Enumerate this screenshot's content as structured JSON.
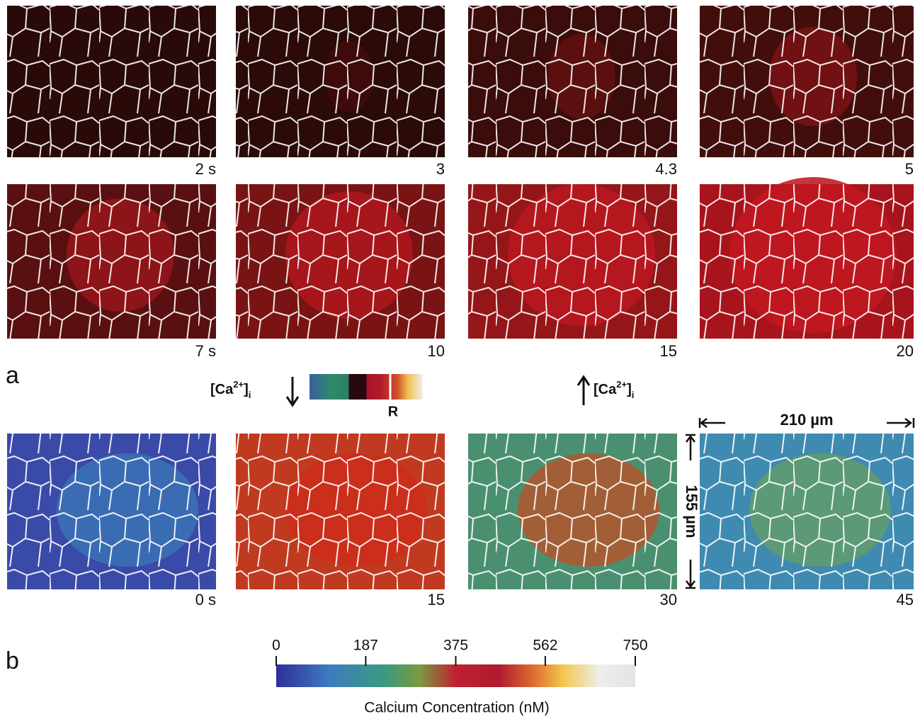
{
  "figure": {
    "panel_a": {
      "label": "a",
      "frames": [
        "2 s",
        "3",
        "4.3",
        "5",
        "7 s",
        "10",
        "15",
        "20"
      ],
      "ion": {
        "base": "[Ca",
        "charge": "2+",
        "bracket": "]",
        "subscript": "i"
      },
      "reference": "R"
    },
    "panel_b": {
      "label": "b",
      "frames": [
        "0 s",
        "15",
        "30",
        "45"
      ],
      "scale_width": "210 µm",
      "scale_height": "155 µm",
      "colorbar": {
        "ticks": [
          0,
          187,
          375,
          562,
          750
        ],
        "title": "Calcium Concentration (nM)"
      }
    }
  }
}
